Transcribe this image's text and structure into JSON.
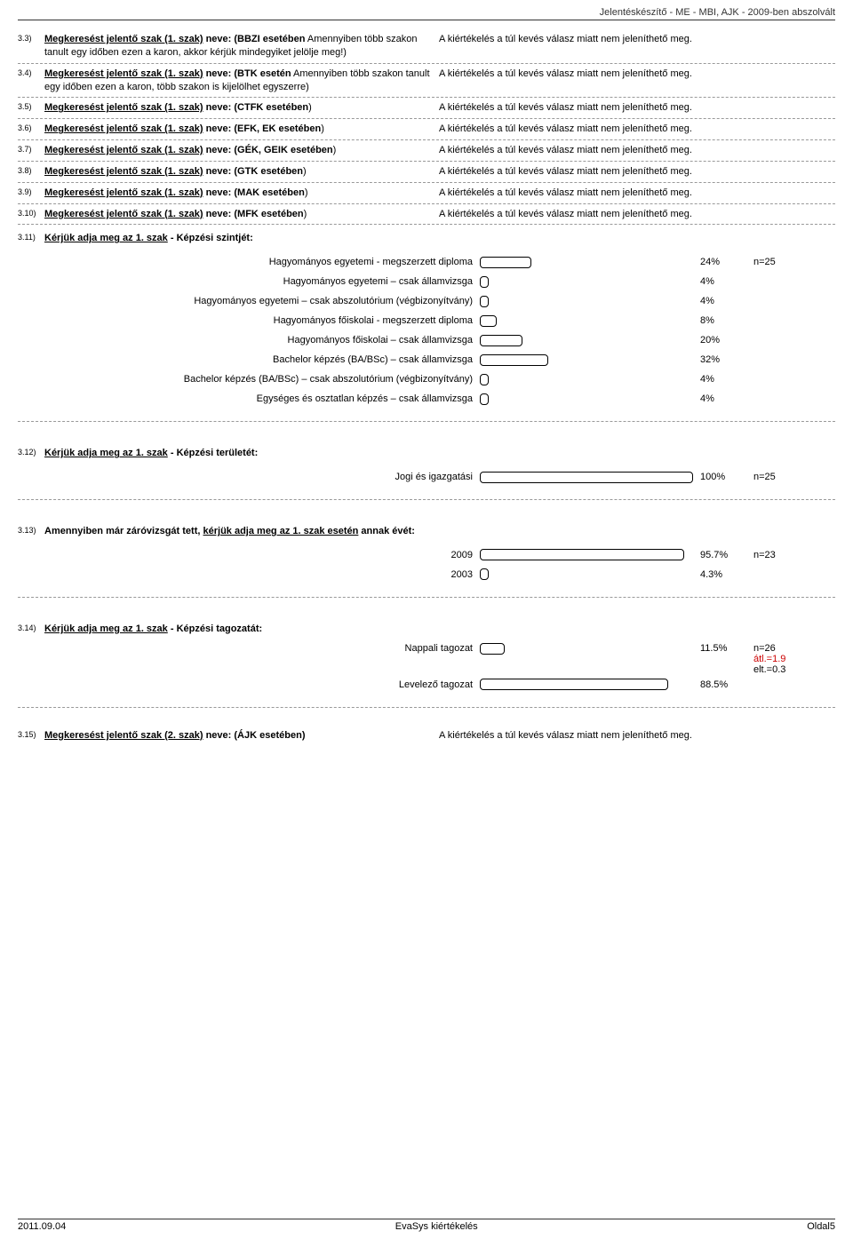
{
  "header": "Jelentéskészítő - ME - MBI, AJK -  2009-ben abszolvált",
  "not_displayable": "A kiértékelés a túl kevés válasz miatt nem jeleníthető meg.",
  "questions": [
    {
      "num": "3.3)",
      "prefix": "Megkeresést jelentő szak (1. szak)",
      "mid": " neve: (",
      "bold2": "BBZI esetében",
      "suffix": " Amennyiben több szakon tanult egy időben ezen a karon, akkor kérjük mindegyiket jelölje meg!)"
    },
    {
      "num": "3.4)",
      "prefix": "Megkeresést jelentő szak (1. szak)",
      "mid": " neve: (",
      "bold2": "BTK esetén",
      "suffix": " Amennyiben több szakon tanult egy időben ezen a karon, több szakon is kijelölhet egyszerre)"
    },
    {
      "num": "3.5)",
      "prefix": "Megkeresést jelentő szak (1. szak)",
      "mid": " neve: (",
      "bold2": "CTFK esetében",
      "suffix": ")"
    },
    {
      "num": "3.6)",
      "prefix": "Megkeresést jelentő szak (1. szak)",
      "mid": " neve: (",
      "bold2": "EFK, EK esetében",
      "suffix": ")"
    },
    {
      "num": "3.7)",
      "prefix": "Megkeresést jelentő szak (1. szak)",
      "mid": " neve: (",
      "bold2": "GÉK, GEIK esetében",
      "suffix": ")"
    },
    {
      "num": "3.8)",
      "prefix": "Megkeresést jelentő szak (1. szak)",
      "mid": " neve: (",
      "bold2": "GTK esetében",
      "suffix": ")"
    },
    {
      "num": "3.9)",
      "prefix": "Megkeresést jelentő szak (1. szak)",
      "mid": " neve: (",
      "bold2": "MAK esetében",
      "suffix": ")"
    },
    {
      "num": "3.10)",
      "prefix": "Megkeresést jelentő szak (1. szak)",
      "mid": " neve: (",
      "bold2": "MFK esetében",
      "suffix": ")"
    }
  ],
  "q311": {
    "num": "3.11)",
    "title_pre": "Kérjük adja meg az 1. szak",
    "title_post": " - Képzési szintjét:",
    "n": "n=25",
    "bar_max_width": 240,
    "items": [
      {
        "label": "Hagyományos egyetemi  - megszerzett diploma",
        "pct": 24
      },
      {
        "label": "Hagyományos egyetemi – csak államvizsga",
        "pct": 4
      },
      {
        "label": "Hagyományos egyetemi – csak abszolutórium (végbizonyítvány)",
        "pct": 4
      },
      {
        "label": "Hagyományos főiskolai - megszerzett diploma",
        "pct": 8
      },
      {
        "label": "Hagyományos főiskolai – csak államvizsga",
        "pct": 20
      },
      {
        "label": "Bachelor képzés (BA/BSc) – csak államvizsga",
        "pct": 32
      },
      {
        "label": "Bachelor képzés (BA/BSc) – csak abszolutórium (végbizonyítvány)",
        "pct": 4
      },
      {
        "label": "Egységes és osztatlan képzés – csak államvizsga",
        "pct": 4
      }
    ]
  },
  "q312": {
    "num": "3.12)",
    "title_pre": "Kérjük adja meg az 1. szak",
    "title_post": " - Képzési területét:",
    "n": "n=25",
    "bar_max_width": 240,
    "items": [
      {
        "label": "Jogi és igazgatási",
        "pct": 100
      }
    ]
  },
  "q313": {
    "num": "3.13)",
    "title_plain_pre": "Amennyiben már záróvizsgát tett, ",
    "title_u": "kérjük adja meg az 1. szak esetén",
    "title_plain_post": " annak évét:",
    "n": "n=23",
    "bar_max_width": 240,
    "items": [
      {
        "label": "2009",
        "pct": 95.7
      },
      {
        "label": "2003",
        "pct": 4.3
      }
    ]
  },
  "q314": {
    "num": "3.14)",
    "title_pre": "Kérjük adja meg az 1. szak",
    "title_post": " - Képzési tagozatát:",
    "n": "n=26",
    "stats": [
      "átl.=1.9",
      "elt.=0.3"
    ],
    "bar_max_width": 240,
    "items": [
      {
        "label": "Nappali tagozat",
        "pct": 11.5
      },
      {
        "label": "Levelező tagozat",
        "pct": 88.5
      }
    ]
  },
  "q315": {
    "num": "3.15)",
    "prefix": "Megkeresést jelentő szak (2. szak)",
    "mid": " neve: (",
    "bold2": "ÁJK esetében",
    "suffix": ")"
  },
  "footer": {
    "date": "2011.09.04",
    "center": "EvaSys kiértékelés",
    "page": "Oldal5"
  }
}
